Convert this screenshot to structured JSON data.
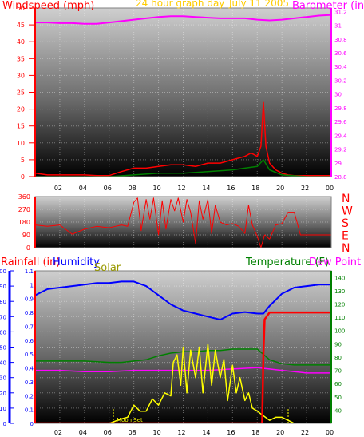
{
  "header": {
    "windspeed_label": "Windspeed (mph)",
    "period_label": "24 hour graph day",
    "date_label": "July 11 2005",
    "barometer_label": "Barometer (in)"
  },
  "panel2": {
    "compass_letters": [
      "N",
      "W",
      "S",
      "E",
      "N"
    ]
  },
  "panel3": {
    "rainfall_label": "Rainfall (in)",
    "humidity_label": "Humidity",
    "solar_label": "Solar",
    "temperature_label": "Temperature (F)",
    "dewpoint_label": "Dew Point (",
    "moonset_label": "Moon Set"
  },
  "colors": {
    "windspeed": "#ff0000",
    "gust": "#008000",
    "barometer": "#ff00ff",
    "direction": "#ff0000",
    "rainfall": "#ff0000",
    "humidity": "#0000ff",
    "solar": "#ffff00",
    "temperature": "#008000",
    "dewpoint": "#ff00ff",
    "frame_blue": "#0000ff",
    "frame_red": "#ff0000",
    "frame_green": "#008000"
  },
  "chart_data": [
    {
      "type": "line",
      "name": "wind-barometer",
      "x_ticks": [
        "02",
        "04",
        "06",
        "08",
        "10",
        "12",
        "14",
        "16",
        "18",
        "20",
        "22",
        "00"
      ],
      "y_ticks_left": [
        "0",
        "5",
        "10",
        "15",
        "20",
        "25",
        "30",
        "35",
        "40",
        "45",
        "50"
      ],
      "y_ticks_right": [
        "28.8",
        "29",
        "29.2",
        "29.4",
        "29.6",
        "29.8",
        "30",
        "30.2",
        "30.4",
        "30.6",
        "30.8",
        "31",
        "31.2"
      ],
      "xlim": [
        0,
        24
      ],
      "ylim_left": [
        0,
        50
      ],
      "ylim_right": [
        28.8,
        31.25
      ],
      "series": [
        {
          "axis": "left",
          "x": [
            0,
            1,
            2,
            3,
            4,
            5,
            6,
            7,
            8,
            9,
            10,
            11,
            12,
            13,
            14,
            15,
            16,
            17,
            17.5,
            18,
            18.3,
            18.5,
            18.7,
            19,
            19.5,
            20,
            20.5,
            21,
            22,
            23,
            24
          ],
          "values": [
            1,
            0.5,
            0.5,
            0.5,
            0.5,
            0.3,
            0.3,
            1.5,
            2.5,
            2.5,
            3,
            3.5,
            3.5,
            3,
            4,
            4,
            5,
            6,
            7,
            6,
            9,
            22,
            9,
            4,
            2,
            1,
            0.5,
            0.3,
            0.3,
            0.3,
            0.3
          ]
        },
        {
          "axis": "left",
          "x": [
            0,
            3,
            6,
            8,
            10,
            12,
            14,
            16,
            17,
            18,
            18.5,
            19,
            20,
            22,
            24
          ],
          "values": [
            0,
            0,
            0,
            0.5,
            1,
            1,
            1.5,
            2,
            2.5,
            3,
            5,
            2,
            0.5,
            0,
            0
          ]
        },
        {
          "axis": "right",
          "x": [
            0,
            1,
            2,
            3,
            4,
            5,
            6,
            7,
            8,
            9,
            10,
            11,
            12,
            13,
            14,
            15,
            16,
            17,
            18,
            19,
            20,
            21,
            22,
            23,
            24
          ],
          "values": [
            31.04,
            31.04,
            31.03,
            31.03,
            31.02,
            31.02,
            31.04,
            31.06,
            31.08,
            31.1,
            31.12,
            31.13,
            31.13,
            31.12,
            31.11,
            31.1,
            31.1,
            31.1,
            31.08,
            31.07,
            31.08,
            31.1,
            31.12,
            31.14,
            31.15
          ]
        }
      ]
    },
    {
      "type": "line",
      "name": "wind-direction",
      "y_ticks": [
        "360",
        "270",
        "180",
        "90",
        "0"
      ],
      "xlim": [
        0,
        24
      ],
      "ylim": [
        0,
        360
      ],
      "x": [
        0,
        1,
        2,
        3,
        4,
        5,
        6,
        6.5,
        7,
        7.5,
        8,
        8.3,
        8.6,
        9,
        9.3,
        9.6,
        10,
        10.3,
        10.6,
        11,
        11.3,
        11.6,
        12,
        12.3,
        12.6,
        13,
        13.3,
        13.6,
        14,
        14.3,
        14.6,
        15,
        15.5,
        16,
        16.5,
        17,
        17.3,
        17.6,
        18,
        18.3,
        18.6,
        19,
        19.5,
        20,
        20.5,
        21,
        21.5,
        22,
        23,
        24
      ],
      "values": [
        160,
        150,
        160,
        95,
        130,
        150,
        140,
        150,
        160,
        150,
        320,
        350,
        120,
        340,
        200,
        350,
        90,
        330,
        130,
        340,
        260,
        350,
        180,
        340,
        250,
        30,
        330,
        200,
        340,
        100,
        300,
        180,
        160,
        170,
        150,
        100,
        300,
        160,
        80,
        0,
        90,
        60,
        160,
        170,
        250,
        250,
        90,
        90,
        90,
        90
      ]
    },
    {
      "type": "line",
      "name": "rain-humidity-solar-temperature",
      "x_ticks": [
        "02",
        "04",
        "06",
        "08",
        "10",
        "12",
        "14",
        "16",
        "18",
        "20",
        "22",
        "00"
      ],
      "y_ticks_humidity": [
        "0",
        "10",
        "20",
        "30",
        "40",
        "50",
        "60",
        "70",
        "80",
        "90",
        "100"
      ],
      "y_ticks_rain": [
        "0",
        "0.1",
        "0.2",
        "0.3",
        "0.4",
        "0.5",
        "0.6",
        "0.7",
        "0.8",
        "0.9",
        "1",
        "1.1"
      ],
      "y_ticks_temperature": [
        "40",
        "50",
        "60",
        "70",
        "80",
        "90",
        "100",
        "110",
        "120",
        "130",
        "140"
      ],
      "xlim": [
        0,
        24
      ],
      "series": [
        {
          "axis": "humidity",
          "x": [
            0,
            1,
            2,
            3,
            4,
            5,
            6,
            7,
            8,
            9,
            10,
            11,
            12,
            13,
            14,
            15,
            16,
            17,
            18,
            18.5,
            19,
            20,
            21,
            22,
            23,
            24
          ],
          "values": [
            84,
            88,
            89,
            90,
            91,
            92,
            92,
            93,
            93,
            90,
            84,
            78,
            74,
            72,
            70,
            68,
            72,
            73,
            72,
            72,
            77,
            85,
            89,
            90,
            91,
            91
          ]
        },
        {
          "axis": "rain",
          "x": [
            0,
            18.4,
            18.5,
            18.6,
            19,
            24
          ],
          "values": [
            0,
            0,
            0.5,
            0.75,
            0.8,
            0.8
          ]
        },
        {
          "axis": "humidity",
          "x": [
            0,
            5,
            6,
            7,
            7.5,
            8,
            8.5,
            9,
            9.5,
            10,
            10.5,
            11,
            11.2,
            11.5,
            11.8,
            12,
            12.3,
            12.6,
            13,
            13.3,
            13.6,
            14,
            14.3,
            14.6,
            15,
            15.3,
            15.6,
            16,
            16.3,
            16.6,
            17,
            17.3,
            17.6,
            18,
            18.5,
            19,
            19.5,
            20,
            20.5,
            21,
            22,
            24
          ],
          "values": [
            0,
            0,
            0,
            3,
            4,
            12,
            8,
            8,
            16,
            12,
            20,
            18,
            40,
            45,
            25,
            50,
            20,
            48,
            30,
            50,
            20,
            52,
            25,
            48,
            30,
            42,
            15,
            38,
            20,
            30,
            15,
            20,
            10,
            8,
            5,
            2,
            4,
            4,
            2,
            0,
            0,
            0
          ]
        },
        {
          "axis": "temperature",
          "x": [
            0,
            2,
            4,
            6,
            7,
            8,
            9,
            10,
            11,
            12,
            13,
            14,
            15,
            16,
            17,
            18,
            18.5,
            19,
            20,
            21,
            22,
            23,
            24
          ],
          "values": [
            77,
            77,
            77,
            76,
            76,
            77,
            78,
            81,
            83,
            84,
            84,
            85,
            85,
            86,
            86,
            86,
            82,
            78,
            75,
            74,
            74,
            74,
            74
          ]
        },
        {
          "axis": "temperature",
          "x": [
            0,
            2,
            4,
            6,
            8,
            10,
            12,
            14,
            16,
            18,
            19,
            20,
            22,
            24
          ],
          "values": [
            70,
            70,
            69,
            69,
            70,
            70,
            70,
            70,
            71,
            72,
            71,
            70,
            68,
            68
          ]
        }
      ]
    }
  ]
}
